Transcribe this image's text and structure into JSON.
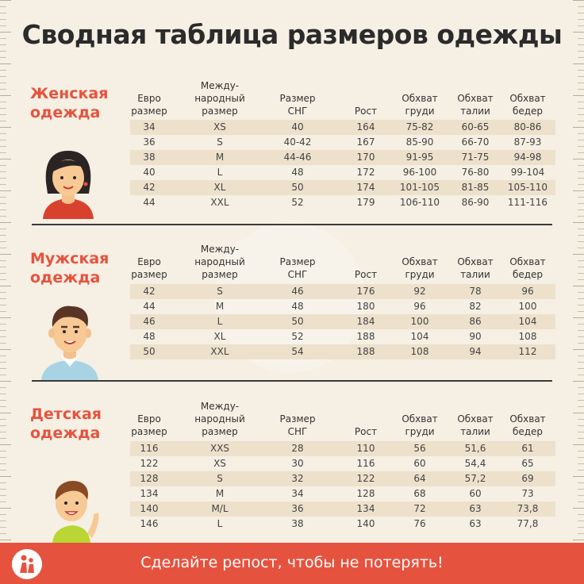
{
  "title": "Сводная таблица размеров одежды",
  "headers": {
    "euro": [
      "Евро",
      "размер"
    ],
    "intl": [
      "Между-",
      "народный",
      "размер"
    ],
    "cis": [
      "Размер",
      "СНГ"
    ],
    "height": [
      "Рост"
    ],
    "chest": [
      "Обхват",
      "груди"
    ],
    "waist": [
      "Обхват",
      "талии"
    ],
    "hips": [
      "Обхват",
      "бедер"
    ]
  },
  "women": {
    "label": [
      "Женская",
      "одежда"
    ],
    "rows": [
      [
        "34",
        "XS",
        "40",
        "164",
        "75-82",
        "60-65",
        "80-86"
      ],
      [
        "36",
        "S",
        "40-42",
        "167",
        "85-90",
        "66-70",
        "87-93"
      ],
      [
        "38",
        "M",
        "44-46",
        "170",
        "91-95",
        "71-75",
        "94-98"
      ],
      [
        "40",
        "L",
        "48",
        "172",
        "96-100",
        "76-80",
        "99-104"
      ],
      [
        "42",
        "XL",
        "50",
        "174",
        "101-105",
        "81-85",
        "105-110"
      ],
      [
        "44",
        "XXL",
        "52",
        "179",
        "106-110",
        "86-90",
        "111-116"
      ]
    ]
  },
  "men": {
    "label": [
      "Мужская",
      "одежда"
    ],
    "rows": [
      [
        "42",
        "S",
        "46",
        "176",
        "92",
        "78",
        "96"
      ],
      [
        "44",
        "M",
        "48",
        "180",
        "96",
        "82",
        "100"
      ],
      [
        "46",
        "L",
        "50",
        "184",
        "100",
        "86",
        "104"
      ],
      [
        "48",
        "XL",
        "52",
        "188",
        "104",
        "90",
        "108"
      ],
      [
        "50",
        "XXL",
        "54",
        "188",
        "108",
        "94",
        "112"
      ]
    ]
  },
  "kids": {
    "label": [
      "Детская",
      "одежда"
    ],
    "rows": [
      [
        "116",
        "XXS",
        "28",
        "110",
        "56",
        "51,6",
        "61"
      ],
      [
        "122",
        "XS",
        "30",
        "116",
        "60",
        "54,4",
        "65"
      ],
      [
        "128",
        "S",
        "32",
        "122",
        "64",
        "57,2",
        "69"
      ],
      [
        "134",
        "M",
        "34",
        "128",
        "68",
        "60",
        "73"
      ],
      [
        "140",
        "M/L",
        "36",
        "134",
        "72",
        "63",
        "73,8"
      ],
      [
        "146",
        "L",
        "38",
        "140",
        "76",
        "63",
        "77,8"
      ]
    ]
  },
  "footer": {
    "text": "Сделайте репост, чтобы не потерять!"
  },
  "colors": {
    "accent": "#e5533f",
    "shade": "#ede1cc",
    "background": "#f6efe3"
  }
}
